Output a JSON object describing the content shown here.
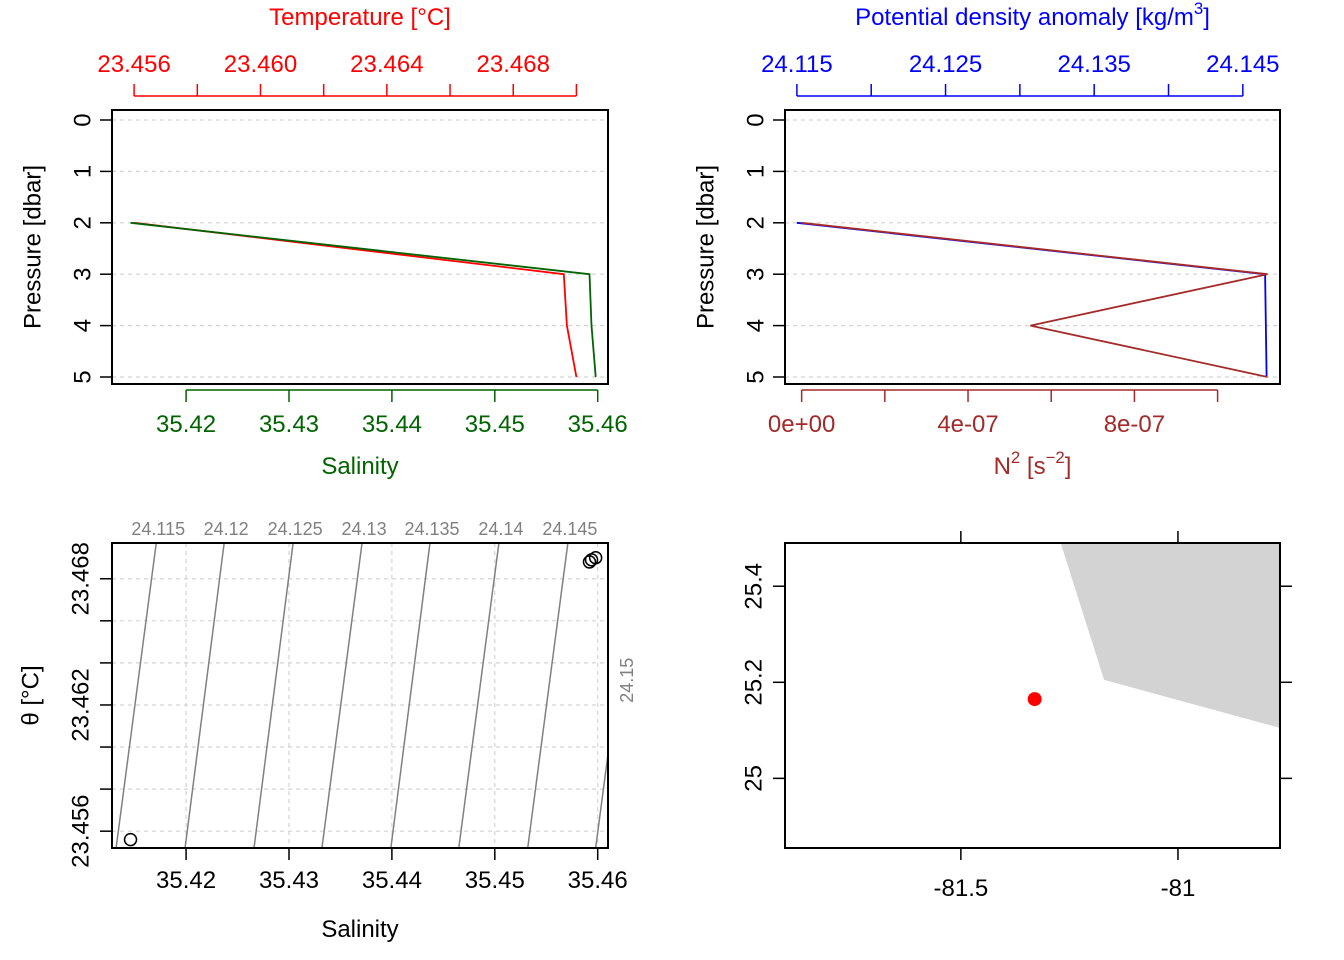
{
  "colors": {
    "temperature": "#FF0000",
    "salinity": "#006400",
    "density": "#0000FF",
    "n2": "#A52A2A",
    "isopycnal": "#808080",
    "grid": "#D3D3D3",
    "land": "#D3D3D3",
    "station": "#FF0000"
  },
  "chart_data": [
    {
      "id": "TS-profile",
      "type": "line",
      "title": "Temperature [°C]",
      "xlabel": "Salinity",
      "ylabel": "Pressure [dbar]",
      "grid": true,
      "ylim": [
        5,
        0
      ],
      "y_ticks": [
        0,
        1,
        2,
        3,
        4,
        5
      ],
      "top_axis": {
        "label": "Temperature [°C]",
        "lim": [
          23.4553,
          23.471
        ],
        "ticks": [
          23.456,
          23.458,
          23.46,
          23.462,
          23.464,
          23.466,
          23.468,
          23.47
        ],
        "labels": [
          [
            "23.456",
            23.456
          ],
          [
            "23.460",
            23.46
          ],
          [
            "23.464",
            23.464
          ],
          [
            "23.468",
            23.468
          ]
        ]
      },
      "bottom_axis": {
        "label": "Salinity",
        "lim": [
          35.4128,
          35.461
        ],
        "ticks": [
          35.42,
          35.43,
          35.44,
          35.45,
          35.46
        ],
        "labels": [
          [
            "35.42",
            35.42
          ],
          [
            "35.43",
            35.43
          ],
          [
            "35.44",
            35.44
          ],
          [
            "35.45",
            35.45
          ],
          [
            "35.46",
            35.46
          ]
        ]
      },
      "series": [
        {
          "axis": "top",
          "pressure": [
            2,
            3,
            4,
            5
          ],
          "values": [
            23.456,
            23.4696,
            23.4697,
            23.47
          ]
        },
        {
          "axis": "bottom",
          "pressure": [
            2,
            3,
            4,
            5
          ],
          "values": [
            35.4146,
            35.4592,
            35.4594,
            35.4598
          ]
        }
      ]
    },
    {
      "id": "density-N2-profile",
      "type": "line",
      "title": "Potential density anomaly [kg/m³]",
      "xlabel": "N² [s⁻²]",
      "ylabel": "Pressure [dbar]",
      "grid": true,
      "ylim": [
        5,
        0
      ],
      "y_ticks": [
        0,
        1,
        2,
        3,
        4,
        5
      ],
      "top_axis": {
        "label": "Potential density anomaly [kg/m³]",
        "lim": [
          24.1142,
          24.1475
        ],
        "ticks": [
          24.115,
          24.12,
          24.125,
          24.13,
          24.135,
          24.14,
          24.145
        ],
        "labels": [
          [
            "24.115",
            24.115
          ],
          [
            "24.125",
            24.125
          ],
          [
            "24.135",
            24.135
          ],
          [
            "24.145",
            24.145
          ]
        ]
      },
      "bottom_axis": {
        "label": "N² [s⁻²]",
        "lim": [
          -4e-08,
          1.15e-06
        ],
        "ticks": [
          0,
          2e-07,
          4e-07,
          6e-07,
          8e-07,
          1e-06
        ],
        "labels": [
          [
            "0e+00",
            0
          ],
          [
            "4e-07",
            4e-07
          ],
          [
            "8e-07",
            8e-07
          ]
        ]
      },
      "series": [
        {
          "axis": "top",
          "pressure": [
            2,
            3,
            5
          ],
          "values": [
            24.115,
            24.1465,
            24.1466
          ]
        },
        {
          "axis": "bottom",
          "pressure": [
            2,
            3,
            4,
            5
          ],
          "values": [
            0,
            1.12e-06,
            5.5e-07,
            1.12e-06
          ]
        }
      ]
    },
    {
      "id": "TS-diagram",
      "type": "scatter",
      "xlabel": "Salinity",
      "ylabel": "θ [°C]",
      "grid": true,
      "xlim": [
        35.4128,
        35.461
      ],
      "ylim": [
        23.4552,
        23.4697
      ],
      "x_ticks": [
        [
          "35.42",
          35.42
        ],
        [
          "35.43",
          35.43
        ],
        [
          "35.44",
          35.44
        ],
        [
          "35.45",
          35.45
        ],
        [
          "35.46",
          35.46
        ]
      ],
      "y_ticks": [
        23.456,
        23.458,
        23.46,
        23.462,
        23.464,
        23.466,
        23.468
      ],
      "y_labels": [
        [
          "23.456",
          23.456
        ],
        [
          "23.462",
          23.462
        ],
        [
          "23.468",
          23.468
        ]
      ],
      "points": [
        {
          "x": 35.4146,
          "y": 23.4556
        },
        {
          "x": 35.4592,
          "y": 23.4688
        },
        {
          "x": 35.4594,
          "y": 23.4689
        },
        {
          "x": 35.4598,
          "y": 23.469
        }
      ],
      "isopycnals": [
        {
          "label": "24.115",
          "lines": [
            [
              35.4132,
              23.4552
            ],
            [
              35.4171,
              23.4697
            ]
          ]
        },
        {
          "label": "24.12",
          "lines": [
            [
              35.4199,
              23.4552
            ],
            [
              35.4237,
              23.4697
            ]
          ]
        },
        {
          "label": "24.125",
          "lines": [
            [
              35.4266,
              23.4552
            ],
            [
              35.4304,
              23.4697
            ]
          ]
        },
        {
          "label": "24.13",
          "lines": [
            [
              35.4332,
              23.4552
            ],
            [
              35.4371,
              23.4697
            ]
          ]
        },
        {
          "label": "24.135",
          "lines": [
            [
              35.4399,
              23.4552
            ],
            [
              35.4437,
              23.4697
            ]
          ]
        },
        {
          "label": "24.14",
          "lines": [
            [
              35.4465,
              23.4552
            ],
            [
              35.4504,
              23.4697
            ]
          ]
        },
        {
          "label": "24.145",
          "lines": [
            [
              35.4532,
              23.4552
            ],
            [
              35.4571,
              23.4697
            ]
          ]
        },
        {
          "label": "24.15",
          "lines": [
            [
              35.4598,
              23.4552
            ],
            [
              35.4637,
              23.4697
            ]
          ]
        }
      ]
    },
    {
      "id": "station-map",
      "type": "map",
      "xlim": [
        -81.905,
        -80.765
      ],
      "ylim": [
        24.855,
        25.49
      ],
      "x_ticks": [
        [
          "-81.5",
          -81.5
        ],
        [
          "-81",
          -81.0
        ]
      ],
      "y_ticks": [
        [
          "25",
          25.0
        ],
        [
          "25.2",
          25.2
        ],
        [
          "25.4",
          25.4
        ]
      ],
      "station": {
        "lon": -81.33,
        "lat": 25.165
      },
      "land": [
        [
          -81.27,
          25.49
        ],
        [
          -81.17,
          25.205
        ],
        [
          -80.765,
          25.105
        ],
        [
          -80.765,
          25.49
        ]
      ]
    }
  ]
}
